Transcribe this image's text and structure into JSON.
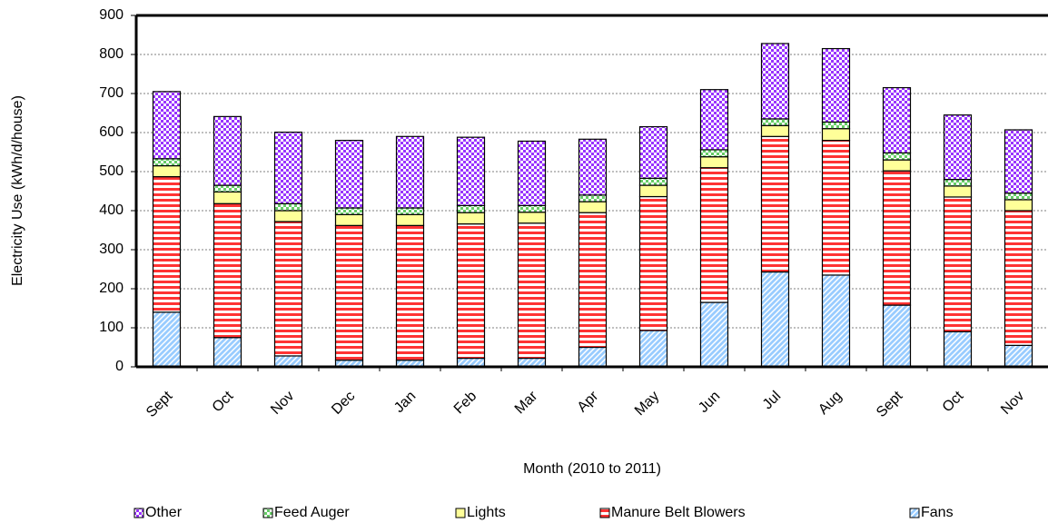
{
  "chart_data": {
    "type": "stacked-bar",
    "x_label": "Month (2010 to 2011)",
    "y_label": "Electricity Use (kWh/d/house)",
    "categories": [
      "Sept",
      "Oct",
      "Nov",
      "Dec",
      "Jan",
      "Feb",
      "Mar",
      "Apr",
      "May",
      "Jun",
      "Jul",
      "Aug",
      "Sept",
      "Oct",
      "Nov"
    ],
    "series": [
      {
        "name": "Fans",
        "color": "#99ccff",
        "pattern": "diagonal",
        "values": [
          140,
          75,
          28,
          17,
          17,
          22,
          22,
          50,
          93,
          165,
          243,
          235,
          158,
          90,
          55
        ]
      },
      {
        "name": "Manure Belt Blowers",
        "color": "#ff3333",
        "pattern": "horizontal",
        "values": [
          347,
          343,
          344,
          345,
          345,
          344,
          346,
          345,
          343,
          345,
          347,
          345,
          344,
          345,
          345
        ]
      },
      {
        "name": "Lights",
        "color": "#ffff99",
        "pattern": "solid",
        "values": [
          28,
          30,
          28,
          28,
          28,
          29,
          28,
          28,
          29,
          28,
          28,
          30,
          28,
          28,
          28
        ]
      },
      {
        "name": "Feed Auger",
        "color": "#66cc66",
        "pattern": "checker",
        "values": [
          18,
          17,
          18,
          17,
          17,
          18,
          17,
          17,
          18,
          18,
          17,
          17,
          18,
          17,
          17
        ]
      },
      {
        "name": "Other",
        "color": "#9933ff",
        "pattern": "checker",
        "values": [
          172,
          176,
          183,
          173,
          183,
          175,
          165,
          143,
          132,
          154,
          193,
          188,
          167,
          165,
          162
        ]
      }
    ],
    "ylim": [
      0,
      900
    ],
    "yticks": [
      0,
      100,
      200,
      300,
      400,
      500,
      600,
      700,
      800,
      900
    ],
    "grid": true,
    "legend": "bottom"
  }
}
